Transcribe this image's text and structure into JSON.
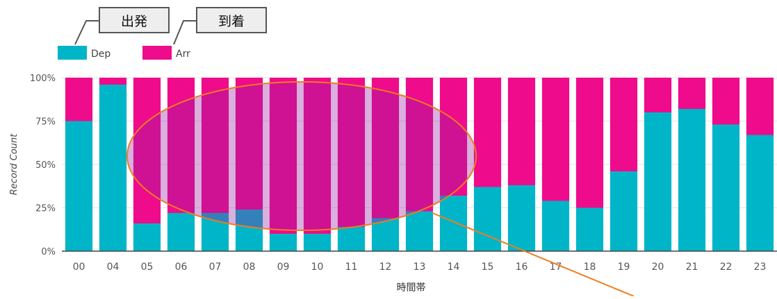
{
  "callouts": {
    "departure_label": "出発",
    "arrival_label": "到着"
  },
  "chart_data": {
    "type": "bar",
    "stacked": true,
    "normalized": true,
    "xlabel": "時間帯",
    "ylabel": "Record Count",
    "ylim": [
      0,
      100
    ],
    "y_ticks": [
      "0%",
      "25%",
      "50%",
      "75%",
      "100%"
    ],
    "categories": [
      "00",
      "04",
      "05",
      "06",
      "07",
      "08",
      "09",
      "10",
      "11",
      "12",
      "13",
      "14",
      "15",
      "16",
      "17",
      "18",
      "19",
      "20",
      "21",
      "22",
      "23"
    ],
    "series": [
      {
        "name": "Dep",
        "color": "#00b5c8",
        "values": [
          75,
          96,
          16,
          22,
          22,
          24,
          10,
          10,
          14,
          19,
          23,
          32,
          37,
          38,
          29,
          25,
          46,
          80,
          82,
          73,
          67
        ]
      },
      {
        "name": "Arr",
        "color": "#ee0b8c",
        "values": [
          25,
          4,
          84,
          78,
          78,
          76,
          90,
          90,
          86,
          81,
          77,
          68,
          63,
          62,
          71,
          75,
          54,
          20,
          18,
          27,
          33
        ]
      }
    ],
    "grid": true,
    "legend_position": "top-left",
    "highlight_color": "#ee7d1e"
  }
}
